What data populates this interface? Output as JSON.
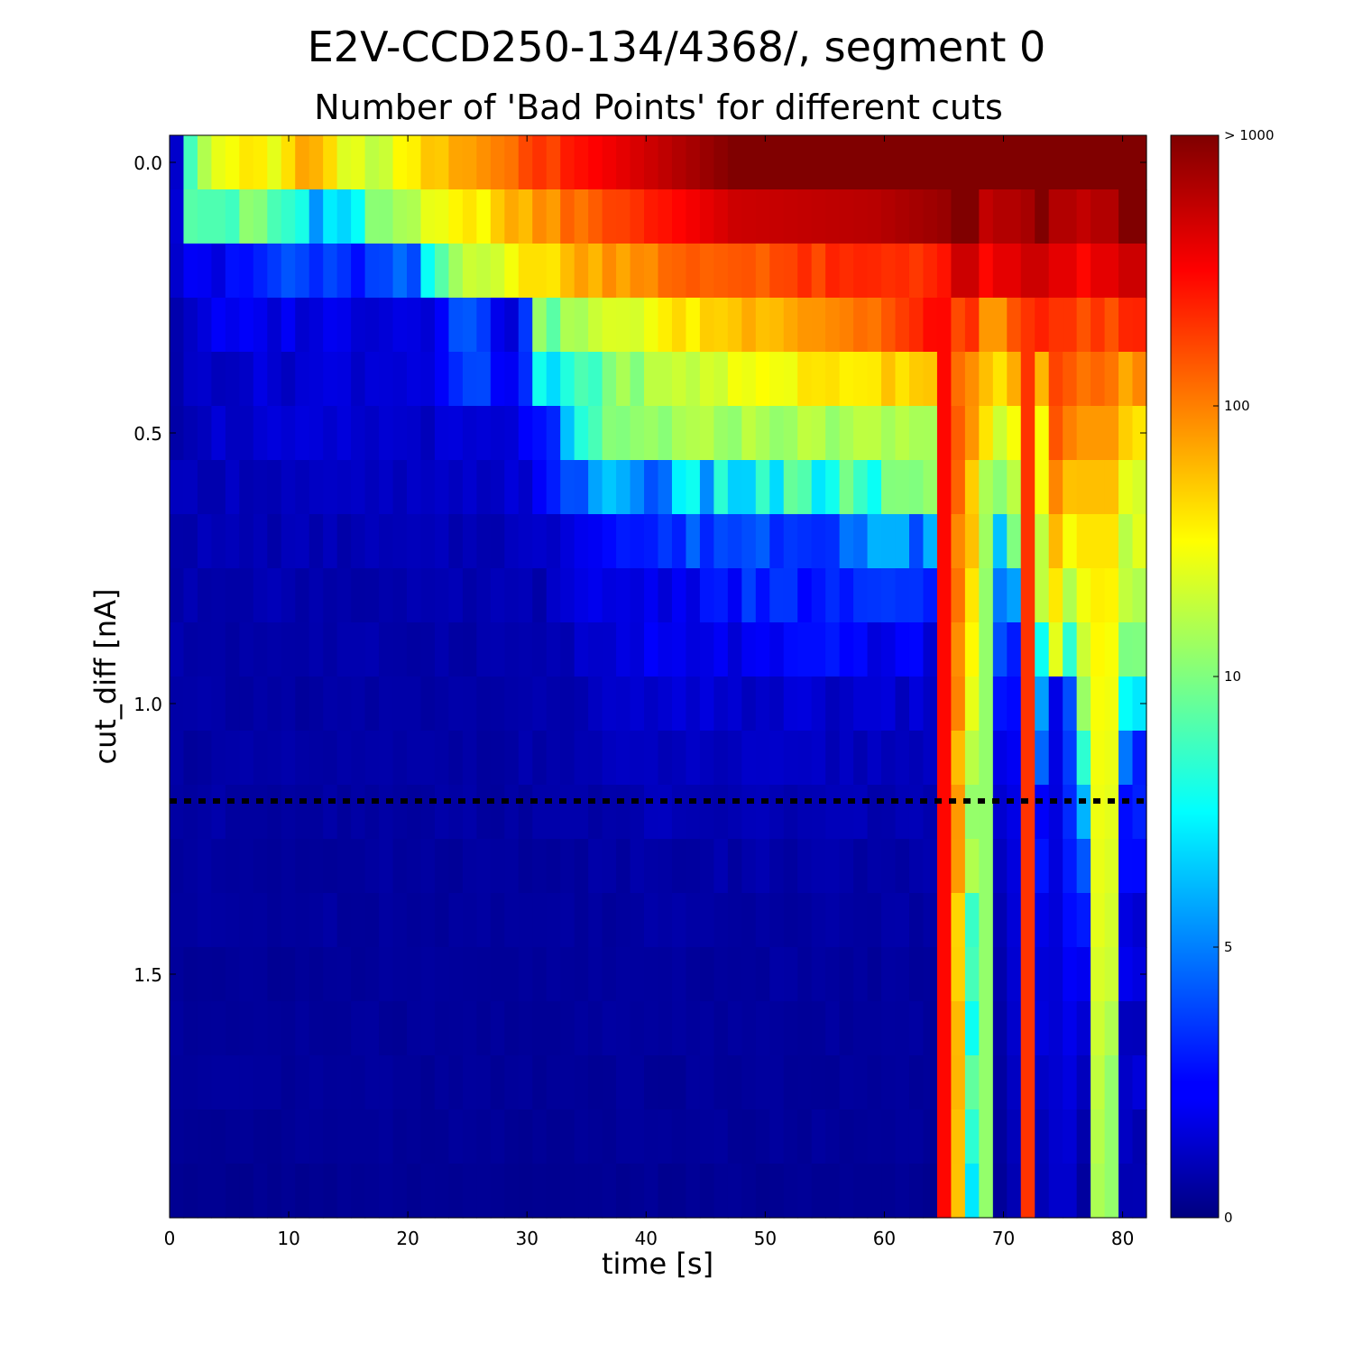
{
  "chart_data": {
    "type": "heatmap",
    "title": "E2V-CCD250-134/4368/, segment 0",
    "subtitle": "Number of 'Bad Points' for different cuts",
    "xlabel": "time [s]",
    "ylabel": "cut_diff [nA]",
    "xlim": [
      0,
      82
    ],
    "ylim": [
      0.0,
      2.0
    ],
    "y_inverted": true,
    "xticks": [
      "0",
      "10",
      "20",
      "30",
      "40",
      "50",
      "60",
      "70",
      "80"
    ],
    "yticks": [
      "0.0",
      "0.5",
      "1.0",
      "1.5"
    ],
    "colormap": "jet",
    "colorbar": {
      "scale": "log",
      "ticks": [
        "0",
        "5",
        "10",
        "100",
        "> 1000"
      ],
      "max": 1000
    },
    "x_bins": 70,
    "y_bins": 20,
    "rows_cut_diff": [
      0.0,
      0.1,
      0.2,
      0.3,
      0.4,
      0.5,
      0.6,
      0.7,
      0.8,
      0.9,
      1.0,
      1.1,
      1.2,
      1.3,
      1.4,
      1.5,
      1.6,
      1.7,
      1.8,
      1.9
    ],
    "threshold_line": {
      "cut_diff": 1.23,
      "style": "dotted",
      "color": "#000000"
    },
    "row_profiles": [
      [
        [
          0,
          2
        ],
        [
          1,
          7
        ],
        [
          2,
          20
        ],
        [
          5,
          40
        ],
        [
          7,
          30
        ],
        [
          9,
          70
        ],
        [
          14,
          15
        ],
        [
          18,
          50
        ],
        [
          22,
          80
        ],
        [
          25,
          180
        ],
        [
          32,
          400
        ],
        [
          40,
          1000
        ]
      ],
      [
        [
          0,
          2
        ],
        [
          1,
          8
        ],
        [
          5,
          10
        ],
        [
          12,
          6
        ],
        [
          16,
          15
        ],
        [
          22,
          40
        ],
        [
          26,
          80
        ],
        [
          30,
          150
        ],
        [
          40,
          500
        ],
        [
          50,
          600
        ],
        [
          55,
          800
        ],
        [
          56,
          1000
        ]
      ],
      [
        [
          0,
          2
        ],
        [
          1,
          3
        ],
        [
          3,
          2
        ],
        [
          8,
          4
        ],
        [
          12,
          3
        ],
        [
          17,
          4
        ],
        [
          21,
          20
        ],
        [
          26,
          40
        ],
        [
          30,
          80
        ],
        [
          40,
          150
        ],
        [
          55,
          250
        ],
        [
          56,
          500
        ]
      ],
      [
        [
          0,
          1
        ],
        [
          2,
          2
        ],
        [
          16,
          2
        ],
        [
          18,
          2
        ],
        [
          20,
          5
        ],
        [
          24,
          2
        ],
        [
          26,
          10
        ],
        [
          34,
          30
        ],
        [
          42,
          70
        ],
        [
          50,
          120
        ],
        [
          55,
          300
        ],
        [
          56,
          200
        ]
      ],
      [
        [
          0,
          1
        ],
        [
          2,
          1.5
        ],
        [
          19,
          2
        ],
        [
          21,
          4
        ],
        [
          24,
          2
        ],
        [
          26,
          6
        ],
        [
          34,
          15
        ],
        [
          42,
          30
        ],
        [
          48,
          40
        ],
        [
          54,
          60
        ],
        [
          55,
          300
        ],
        [
          57,
          80
        ]
      ],
      [
        [
          0,
          1
        ],
        [
          2,
          1.5
        ],
        [
          20,
          1.5
        ],
        [
          24,
          1.5
        ],
        [
          26,
          3
        ],
        [
          30,
          8
        ],
        [
          34,
          12
        ],
        [
          40,
          15
        ],
        [
          54,
          15
        ],
        [
          55,
          300
        ],
        [
          58,
          40
        ]
      ],
      [
        [
          0,
          1
        ],
        [
          2,
          1.2
        ],
        [
          20,
          1.2
        ],
        [
          26,
          2
        ],
        [
          30,
          6
        ],
        [
          34,
          5
        ],
        [
          40,
          7
        ],
        [
          48,
          8
        ],
        [
          54,
          10
        ],
        [
          55,
          300
        ],
        [
          58,
          25
        ]
      ],
      [
        [
          0,
          1
        ],
        [
          4,
          1
        ],
        [
          16,
          1
        ],
        [
          20,
          1
        ],
        [
          26,
          1.3
        ],
        [
          30,
          3
        ],
        [
          34,
          3
        ],
        [
          38,
          4
        ],
        [
          44,
          4
        ],
        [
          50,
          5
        ],
        [
          54,
          5
        ],
        [
          55,
          300
        ],
        [
          58,
          20
        ]
      ],
      [
        [
          0,
          0.8
        ],
        [
          4,
          1
        ],
        [
          16,
          0.8
        ],
        [
          26,
          1
        ],
        [
          30,
          2
        ],
        [
          34,
          2
        ],
        [
          40,
          3
        ],
        [
          48,
          3
        ],
        [
          54,
          3
        ],
        [
          55,
          300
        ],
        [
          58,
          15
        ]
      ],
      [
        [
          0,
          0.8
        ],
        [
          16,
          0.8
        ],
        [
          26,
          0.9
        ],
        [
          30,
          1.5
        ],
        [
          34,
          2
        ],
        [
          40,
          2
        ],
        [
          48,
          2.5
        ],
        [
          54,
          2
        ],
        [
          55,
          300
        ],
        [
          58,
          8
        ]
      ],
      [
        [
          0,
          0.7
        ],
        [
          16,
          0.7
        ],
        [
          26,
          0.8
        ],
        [
          30,
          1.2
        ],
        [
          34,
          1.5
        ],
        [
          40,
          1.5
        ],
        [
          48,
          1.5
        ],
        [
          54,
          1.5
        ],
        [
          55,
          300
        ],
        [
          58,
          6
        ]
      ],
      [
        [
          0,
          0.7
        ],
        [
          16,
          0.7
        ],
        [
          26,
          0.8
        ],
        [
          30,
          1.0
        ],
        [
          34,
          1.2
        ],
        [
          48,
          1.2
        ],
        [
          54,
          1.2
        ],
        [
          55,
          300
        ],
        [
          58,
          4
        ]
      ],
      [
        [
          0,
          0.7
        ],
        [
          16,
          0.7
        ],
        [
          26,
          0.7
        ],
        [
          34,
          1.0
        ],
        [
          48,
          1.0
        ],
        [
          54,
          1.0
        ],
        [
          55,
          300
        ],
        [
          58,
          3
        ]
      ],
      [
        [
          0,
          0.6
        ],
        [
          16,
          0.6
        ],
        [
          26,
          0.6
        ],
        [
          34,
          0.8
        ],
        [
          48,
          0.8
        ],
        [
          54,
          0.8
        ],
        [
          55,
          300
        ],
        [
          58,
          3
        ]
      ],
      [
        [
          0,
          0.6
        ],
        [
          16,
          0.6
        ],
        [
          26,
          0.6
        ],
        [
          34,
          0.7
        ],
        [
          54,
          0.7
        ],
        [
          55,
          300
        ],
        [
          58,
          2
        ]
      ],
      [
        [
          0,
          0.5
        ],
        [
          16,
          0.5
        ],
        [
          26,
          0.5
        ],
        [
          34,
          0.6
        ],
        [
          54,
          0.6
        ],
        [
          55,
          300
        ],
        [
          58,
          2
        ]
      ],
      [
        [
          0,
          0.5
        ],
        [
          16,
          0.5
        ],
        [
          26,
          0.5
        ],
        [
          34,
          0.6
        ],
        [
          54,
          0.6
        ],
        [
          55,
          300
        ],
        [
          58,
          1.5
        ]
      ],
      [
        [
          0,
          0.5
        ],
        [
          16,
          0.5
        ],
        [
          26,
          0.5
        ],
        [
          34,
          0.5
        ],
        [
          54,
          0.5
        ],
        [
          55,
          300
        ],
        [
          58,
          1.5
        ]
      ],
      [
        [
          0,
          0.4
        ],
        [
          16,
          0.5
        ],
        [
          26,
          0.4
        ],
        [
          34,
          0.5
        ],
        [
          54,
          0.5
        ],
        [
          55,
          300
        ],
        [
          58,
          1.2
        ]
      ],
      [
        [
          0,
          0.3
        ],
        [
          16,
          0.4
        ],
        [
          26,
          0.3
        ],
        [
          34,
          0.4
        ],
        [
          54,
          0.4
        ],
        [
          55,
          300
        ],
        [
          58,
          1.0
        ]
      ]
    ],
    "special_columns": [
      {
        "from_col": 58,
        "to_col": 59,
        "profile": [
          [
            0,
            1000
          ],
          [
            2,
            300
          ],
          [
            3,
            80
          ],
          [
            5,
            40
          ],
          [
            6,
            15
          ],
          [
            8,
            12
          ],
          [
            10,
            12
          ],
          [
            14,
            12
          ],
          [
            19,
            12
          ]
        ]
      },
      {
        "from_col": 59,
        "to_col": 60,
        "profile": [
          [
            0,
            1000
          ],
          [
            2,
            400
          ],
          [
            3,
            80
          ],
          [
            5,
            20
          ],
          [
            7,
            6
          ],
          [
            9,
            4
          ],
          [
            11,
            2
          ],
          [
            14,
            1
          ],
          [
            19,
            0.5
          ]
        ]
      },
      {
        "from_col": 60,
        "to_col": 61,
        "profile": [
          [
            0,
            1000
          ],
          [
            2,
            400
          ],
          [
            3,
            150
          ],
          [
            5,
            30
          ],
          [
            7,
            10
          ],
          [
            9,
            3
          ],
          [
            12,
            2
          ],
          [
            16,
            1.5
          ],
          [
            19,
            1
          ]
        ]
      },
      {
        "from_col": 61,
        "to_col": 62,
        "profile": [
          [
            0,
            1000
          ],
          [
            2,
            500
          ],
          [
            3,
            200
          ],
          [
            19,
            200
          ]
        ]
      },
      {
        "from_col": 63,
        "to_col": 64,
        "profile": [
          [
            0,
            1000
          ],
          [
            2,
            400
          ],
          [
            3,
            200
          ],
          [
            5,
            150
          ],
          [
            7,
            60
          ],
          [
            9,
            25
          ],
          [
            10,
            2
          ],
          [
            19,
            1.5
          ]
        ]
      },
      {
        "from_col": 64,
        "to_col": 65,
        "profile": [
          [
            0,
            1000
          ],
          [
            2,
            400
          ],
          [
            3,
            200
          ],
          [
            5,
            100
          ],
          [
            7,
            30
          ],
          [
            9,
            8
          ],
          [
            10,
            4
          ],
          [
            13,
            3
          ],
          [
            19,
            1.5
          ]
        ]
      },
      {
        "from_col": 65,
        "to_col": 66,
        "profile": [
          [
            0,
            1000
          ],
          [
            2,
            300
          ],
          [
            3,
            150
          ],
          [
            5,
            80
          ],
          [
            7,
            40
          ],
          [
            9,
            20
          ],
          [
            11,
            8
          ],
          [
            14,
            3
          ],
          [
            17,
            1.2
          ],
          [
            19,
            0.6
          ]
        ]
      },
      {
        "from_col": 66,
        "to_col": 67,
        "profile": [
          [
            0,
            1000
          ],
          [
            2,
            400
          ],
          [
            3,
            200
          ],
          [
            5,
            80
          ],
          [
            7,
            40
          ],
          [
            10,
            30
          ],
          [
            14,
            25
          ],
          [
            17,
            18
          ],
          [
            19,
            15
          ]
        ]
      },
      {
        "from_col": 67,
        "to_col": 68,
        "profile": [
          [
            0,
            1000
          ],
          [
            2,
            400
          ],
          [
            3,
            150
          ],
          [
            5,
            80
          ],
          [
            7,
            40
          ],
          [
            9,
            30
          ],
          [
            12,
            25
          ],
          [
            15,
            20
          ],
          [
            17,
            12
          ],
          [
            19,
            12
          ]
        ]
      }
    ]
  }
}
